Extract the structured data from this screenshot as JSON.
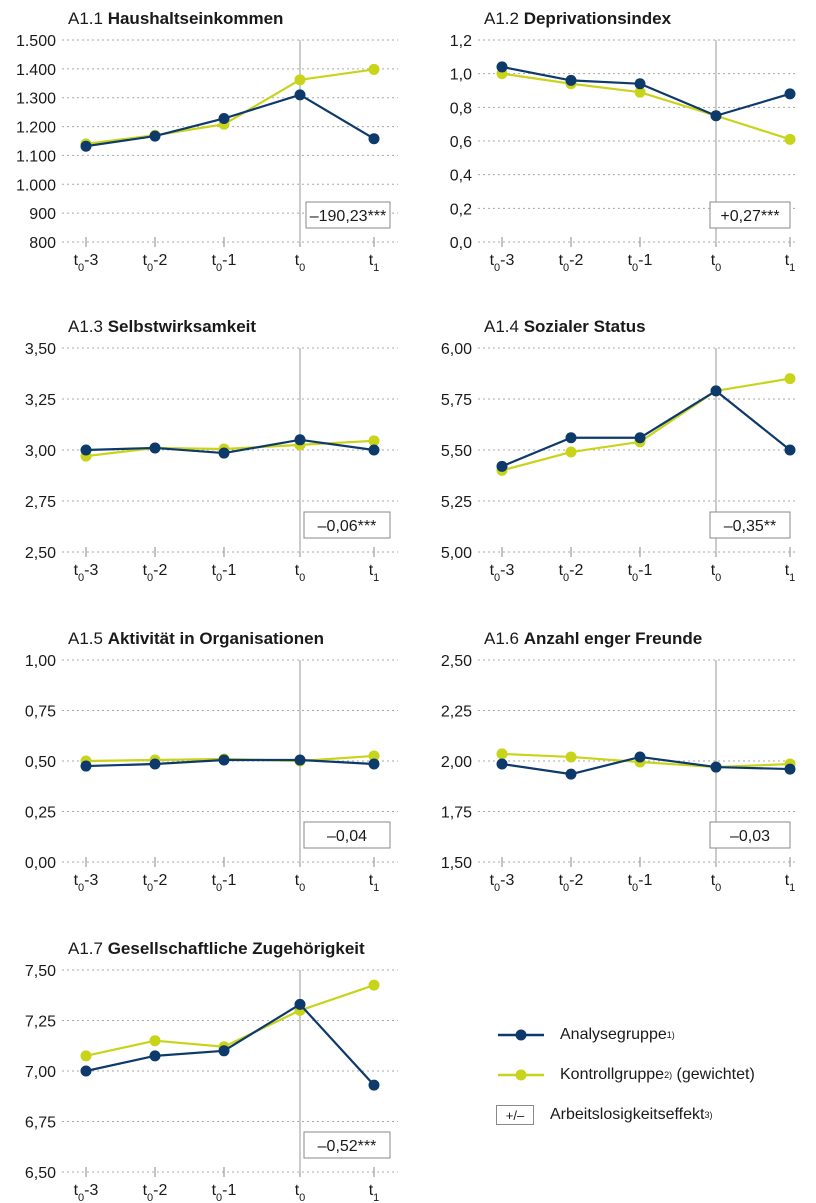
{
  "colors": {
    "analysis": "#0d3a6b",
    "control": "#c8d41a",
    "grid": "#a8a8a8",
    "axis": "#8a8a8a",
    "ref_line": "#b0b0b0"
  },
  "legend": {
    "analysis_label": "Analysegruppe",
    "analysis_sup": "1)",
    "control_label": "Kontrollgruppe",
    "control_sup": "2)",
    "control_suffix": " (gewichtet)",
    "effect_box": "+/–",
    "effect_label": "Arbeitslosigkeitseffekt",
    "effect_sup": "3)"
  },
  "chart_data": [
    {
      "type": "line",
      "id": "A1.1",
      "prefix": "A1.1",
      "title": "Haushaltseinkommen",
      "x": [
        "t0-3",
        "t0-2",
        "t0-1",
        "t0",
        "t1"
      ],
      "yticks": [
        "800",
        "900",
        "1.000",
        "1.100",
        "1.200",
        "1.300",
        "1.400",
        "1.500"
      ],
      "ylim": [
        800,
        1500
      ],
      "series": [
        {
          "key": "analysis",
          "values": [
            1132,
            1167,
            1228,
            1310,
            1158
          ]
        },
        {
          "key": "control",
          "values": [
            1140,
            1170,
            1208,
            1362,
            1398
          ]
        }
      ],
      "effect": "–190,23***"
    },
    {
      "type": "line",
      "id": "A1.2",
      "prefix": "A1.2",
      "title": "Deprivationsindex",
      "x": [
        "t0-3",
        "t0-2",
        "t0-1",
        "t0",
        "t1"
      ],
      "yticks": [
        "0,0",
        "0,2",
        "0,4",
        "0,6",
        "0,8",
        "1,0",
        "1,2"
      ],
      "ylim": [
        0,
        1.2
      ],
      "series": [
        {
          "key": "analysis",
          "values": [
            1.04,
            0.96,
            0.94,
            0.75,
            0.88
          ]
        },
        {
          "key": "control",
          "values": [
            1.0,
            0.94,
            0.89,
            0.75,
            0.61
          ]
        }
      ],
      "effect": "+0,27***"
    },
    {
      "type": "line",
      "id": "A1.3",
      "prefix": "A1.3",
      "title": "Selbstwirksamkeit",
      "x": [
        "t0-3",
        "t0-2",
        "t0-1",
        "t0",
        "t1"
      ],
      "yticks": [
        "2,50",
        "2,75",
        "3,00",
        "3,25",
        "3,50"
      ],
      "ylim": [
        2.5,
        3.5
      ],
      "series": [
        {
          "key": "analysis",
          "values": [
            3.0,
            3.01,
            2.985,
            3.05,
            3.0
          ]
        },
        {
          "key": "control",
          "values": [
            2.97,
            3.01,
            3.005,
            3.025,
            3.045
          ]
        }
      ],
      "effect": "–0,06***"
    },
    {
      "type": "line",
      "id": "A1.4",
      "prefix": "A1.4",
      "title": "Sozialer Status",
      "x": [
        "t0-3",
        "t0-2",
        "t0-1",
        "t0",
        "t1"
      ],
      "yticks": [
        "5,00",
        "5,25",
        "5,50",
        "5,75",
        "6,00"
      ],
      "ylim": [
        5.0,
        6.0
      ],
      "series": [
        {
          "key": "analysis",
          "values": [
            5.42,
            5.56,
            5.56,
            5.79,
            5.5
          ]
        },
        {
          "key": "control",
          "values": [
            5.4,
            5.49,
            5.54,
            5.79,
            5.85
          ]
        }
      ],
      "effect": "–0,35**"
    },
    {
      "type": "line",
      "id": "A1.5",
      "prefix": "A1.5",
      "title": "Aktivität in Organisationen",
      "x": [
        "t0-3",
        "t0-2",
        "t0-1",
        "t0",
        "t1"
      ],
      "yticks": [
        "0,00",
        "0,25",
        "0,50",
        "0,75",
        "1,00"
      ],
      "ylim": [
        0,
        1.0
      ],
      "series": [
        {
          "key": "analysis",
          "values": [
            0.475,
            0.485,
            0.505,
            0.505,
            0.485
          ]
        },
        {
          "key": "control",
          "values": [
            0.5,
            0.505,
            0.51,
            0.5,
            0.525
          ]
        }
      ],
      "effect": "–0,04"
    },
    {
      "type": "line",
      "id": "A1.6",
      "prefix": "A1.6",
      "title": "Anzahl enger Freunde",
      "x": [
        "t0-3",
        "t0-2",
        "t0-1",
        "t0",
        "t1"
      ],
      "yticks": [
        "1,50",
        "1,75",
        "2,00",
        "2,25",
        "2,50"
      ],
      "ylim": [
        1.5,
        2.5
      ],
      "series": [
        {
          "key": "analysis",
          "values": [
            1.985,
            1.935,
            2.02,
            1.97,
            1.96
          ]
        },
        {
          "key": "control",
          "values": [
            2.035,
            2.02,
            1.995,
            1.97,
            1.985
          ]
        }
      ],
      "effect": "–0,03"
    },
    {
      "type": "line",
      "id": "A1.7",
      "prefix": "A1.7",
      "title": "Gesellschaftliche Zugehörigkeit",
      "x": [
        "t0-3",
        "t0-2",
        "t0-1",
        "t0",
        "t1"
      ],
      "yticks": [
        "6,50",
        "6,75",
        "7,00",
        "7,25",
        "7,50"
      ],
      "ylim": [
        6.5,
        7.5
      ],
      "series": [
        {
          "key": "analysis",
          "values": [
            7.0,
            7.075,
            7.1,
            7.33,
            6.93
          ]
        },
        {
          "key": "control",
          "values": [
            7.075,
            7.15,
            7.12,
            7.3,
            7.425
          ]
        }
      ],
      "effect": "–0,52***"
    }
  ]
}
